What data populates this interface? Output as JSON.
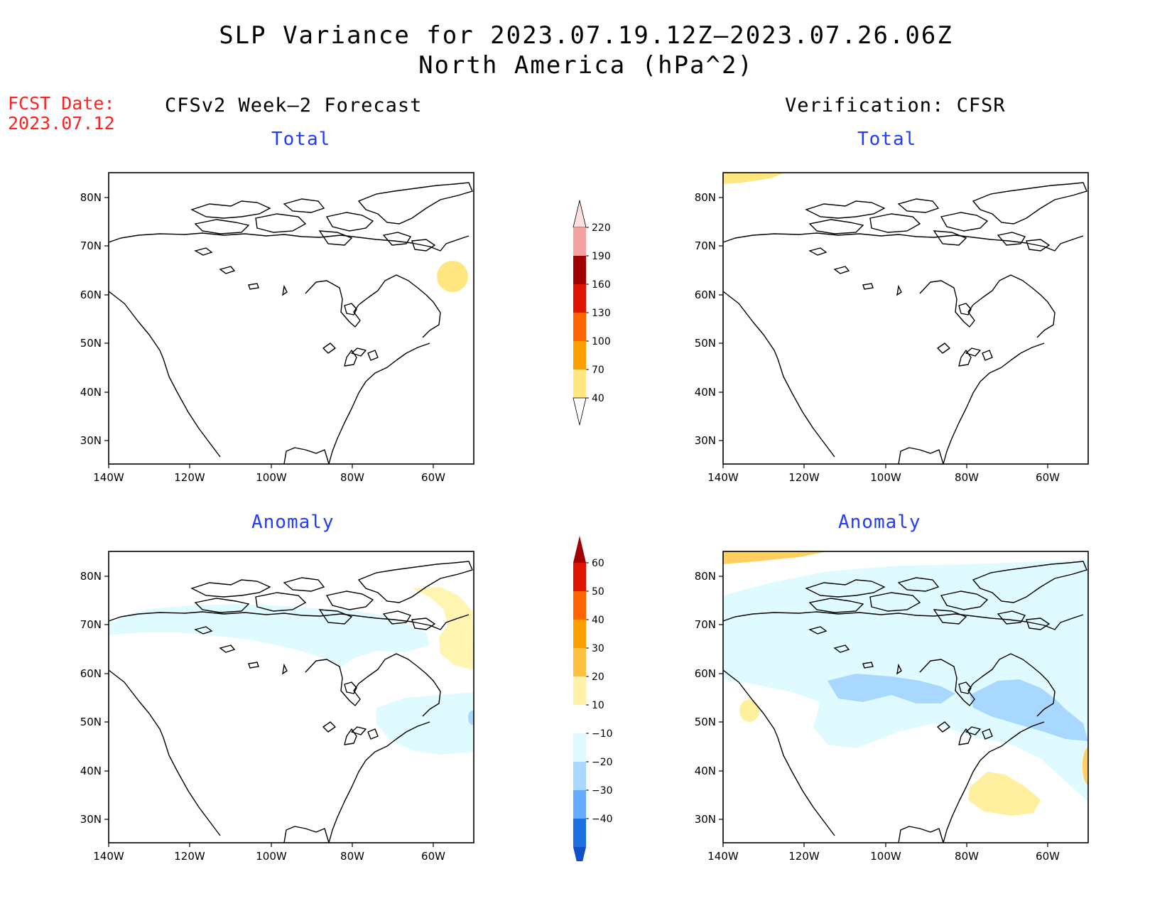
{
  "title": {
    "line1": "SLP Variance for 2023.07.19.12Z–2023.07.26.06Z",
    "line2": "North America (hPa^2)"
  },
  "fcst_date": {
    "label": "FCST Date:",
    "value": "2023.07.12"
  },
  "columns": {
    "left": "CFSv2 Week–2 Forecast",
    "right": "Verification: CFSR"
  },
  "panels": {
    "top_left": "Total",
    "top_right": "Total",
    "bottom_left": "Anomaly",
    "bottom_right": "Anomaly"
  },
  "map_axes": {
    "lon_labels": [
      "140W",
      "120W",
      "100W",
      "80W",
      "60W"
    ],
    "lat_labels": [
      "80N",
      "70N",
      "60N",
      "50N",
      "40N",
      "30N"
    ]
  },
  "colorbars": {
    "total": {
      "labels": [
        "220",
        "190",
        "160",
        "130",
        "100",
        "70",
        "40"
      ],
      "colors": [
        "#ffe0e0",
        "#f4a1a1",
        "#a00000",
        "#e01500",
        "#ff6600",
        "#ffa000",
        "#ffe680"
      ]
    },
    "anomaly": {
      "labels": [
        "60",
        "50",
        "40",
        "30",
        "20",
        "10",
        "−10",
        "−20",
        "−30",
        "−40"
      ],
      "colors": [
        "#a00000",
        "#e01500",
        "#ff6600",
        "#ffa000",
        "#ffc040",
        "#fff2a8",
        "#ffffff",
        "#e0fbff",
        "#a8d8ff",
        "#64aaff",
        "#1e70e0",
        "#1050c8"
      ]
    }
  },
  "colors": {
    "title_text": "#000000",
    "fcst_text": "#ff2020",
    "panel_title": "#1f3cff",
    "yellow": "#fff0a0",
    "light_blue": "#e0fbff",
    "mid_blue": "#a8d8ff"
  }
}
